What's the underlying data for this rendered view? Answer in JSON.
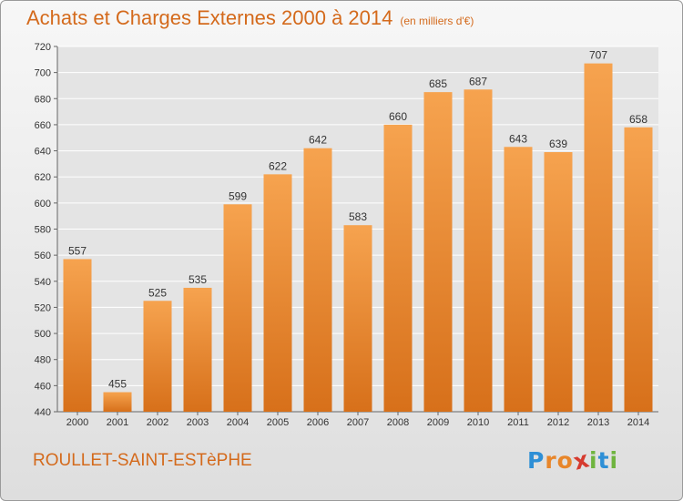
{
  "chart_data": {
    "type": "bar",
    "title": "Achats et Charges Externes 2000 à 2014",
    "subtitle": "(en milliers d'€)",
    "categories": [
      "2000",
      "2001",
      "2002",
      "2003",
      "2004",
      "2005",
      "2006",
      "2007",
      "2008",
      "2009",
      "2010",
      "2011",
      "2012",
      "2013",
      "2014"
    ],
    "values": [
      557,
      455,
      525,
      535,
      599,
      622,
      642,
      583,
      660,
      685,
      687,
      643,
      639,
      707,
      658
    ],
    "ylim": [
      440,
      720
    ],
    "yticks": [
      440,
      460,
      480,
      500,
      520,
      540,
      560,
      580,
      600,
      620,
      640,
      660,
      680,
      700,
      720
    ],
    "grid": true,
    "colors": {
      "bar_light": "#f6a34f",
      "bar_dark": "#d7701a",
      "accent": "#d46a1c"
    }
  },
  "footer": {
    "commune": "ROULLET-SAINT-ESTèPHE",
    "logo_text": "Proxiti",
    "logo_colors": [
      "#2e8fd6",
      "#e8862a",
      "#e8862a",
      "#d63b2f",
      "#6fb43f",
      "#2e8fd6",
      "#6fb43f"
    ]
  }
}
